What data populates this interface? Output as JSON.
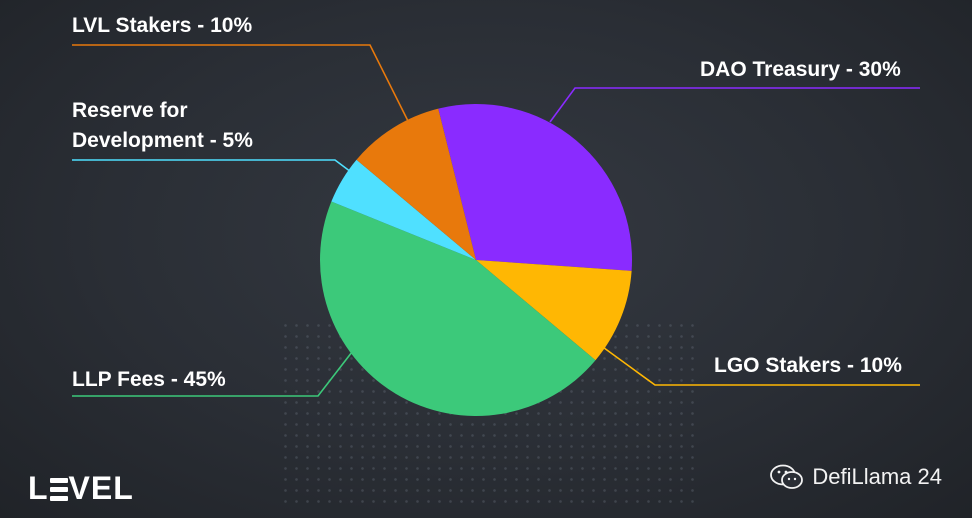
{
  "chart_data": {
    "type": "pie",
    "slices": [
      {
        "label": "DAO Treasury - 30%",
        "value": 30,
        "color": "#8a2bff"
      },
      {
        "label": "LGO Stakers - 10%",
        "value": 10,
        "color": "#ffb703"
      },
      {
        "label": "LLP Fees - 45%",
        "value": 45,
        "color": "#3cc97a"
      },
      {
        "label": "Reserve for Development - 5%",
        "value": 5,
        "color": "#4fe0ff"
      },
      {
        "label": "LVL Stakers - 10%",
        "value": 10,
        "color": "#e8790c"
      }
    ]
  },
  "labels": {
    "dao": "DAO Treasury - 30%",
    "lgo": "LGO Stakers - 10%",
    "llp": "LLP Fees - 45%",
    "reserve_line1": "Reserve for",
    "reserve_line2": "Development - 5%",
    "lvl": "LVL Stakers - 10%"
  },
  "brand": {
    "logo_text_left": "L",
    "logo_text_right": "VEL"
  },
  "watermark": {
    "text": "DefiLlama 24",
    "icon": "wechat-icon"
  }
}
